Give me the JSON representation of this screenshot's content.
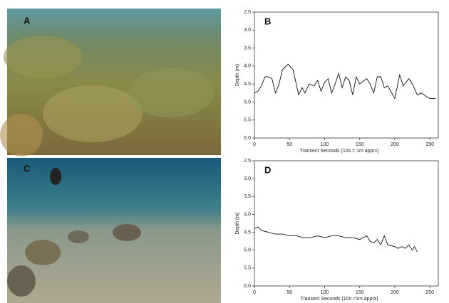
{
  "photos": [
    {
      "label": "A"
    },
    {
      "label": "C"
    }
  ],
  "chart_data": [
    {
      "type": "line",
      "panel_label": "B",
      "x_label": "Transect Seconds (10s = 1m apprx)",
      "y_label": "Depth (m)",
      "color": "#111111",
      "x": [
        0,
        5,
        10,
        15,
        20,
        25,
        30,
        35,
        40,
        48,
        55,
        63,
        68,
        72,
        78,
        85,
        90,
        95,
        100,
        105,
        110,
        115,
        120,
        125,
        130,
        135,
        140,
        145,
        150,
        160,
        165,
        170,
        175,
        180,
        185,
        190,
        200,
        207,
        212,
        220,
        225,
        232,
        238,
        245,
        250,
        258
      ],
      "values": [
        4.75,
        4.7,
        4.55,
        4.3,
        4.3,
        4.35,
        4.75,
        4.5,
        4.1,
        3.95,
        4.1,
        4.8,
        4.6,
        4.75,
        4.5,
        4.55,
        4.4,
        4.7,
        4.45,
        4.35,
        4.75,
        4.5,
        4.2,
        4.6,
        4.3,
        4.4,
        4.8,
        4.3,
        4.5,
        4.35,
        4.5,
        4.75,
        4.3,
        4.3,
        4.6,
        4.55,
        4.9,
        4.25,
        4.55,
        4.35,
        4.5,
        4.8,
        4.75,
        4.85,
        4.9,
        4.9
      ],
      "xlim": [
        0,
        262
      ],
      "xticks": [
        0,
        50,
        100,
        150,
        200,
        250
      ],
      "ylim": [
        6,
        2.5
      ],
      "yticks": [
        2.5,
        {
          "value": 3,
          "label": "3.0"
        },
        3.5,
        {
          "value": 4,
          "label": "4.0"
        },
        4.5,
        {
          "value": 5,
          "label": "5.0"
        },
        5.5,
        {
          "value": 6,
          "label": "6.0"
        }
      ]
    },
    {
      "type": "line",
      "panel_label": "D",
      "x_label": "Transect Seconds (10s =1m apprx)",
      "y_label": "Depth (m)",
      "color": "#111111",
      "x": [
        0,
        5,
        10,
        20,
        30,
        40,
        50,
        60,
        70,
        80,
        90,
        100,
        110,
        120,
        130,
        140,
        150,
        160,
        165,
        170,
        175,
        180,
        185,
        190,
        200,
        205,
        210,
        215,
        220,
        225,
        228,
        232
      ],
      "values": [
        4.4,
        4.35,
        4.45,
        4.5,
        4.55,
        4.55,
        4.6,
        4.6,
        4.65,
        4.65,
        4.6,
        4.65,
        4.6,
        4.6,
        4.65,
        4.65,
        4.7,
        4.6,
        4.75,
        4.8,
        4.7,
        4.85,
        4.6,
        4.85,
        4.9,
        4.95,
        4.9,
        4.95,
        4.85,
        5.0,
        4.9,
        5.05
      ],
      "xlim": [
        0,
        262
      ],
      "xticks": [
        0,
        50,
        100,
        150,
        200,
        250
      ],
      "ylim": [
        6,
        2.5
      ],
      "yticks": [
        2.5,
        {
          "value": 3,
          "label": "3.0"
        },
        3.5,
        {
          "value": 4,
          "label": "4.0"
        },
        4.5,
        {
          "value": 5,
          "label": "5.0"
        },
        5.5,
        {
          "value": 6,
          "label": "6.0"
        }
      ]
    }
  ]
}
